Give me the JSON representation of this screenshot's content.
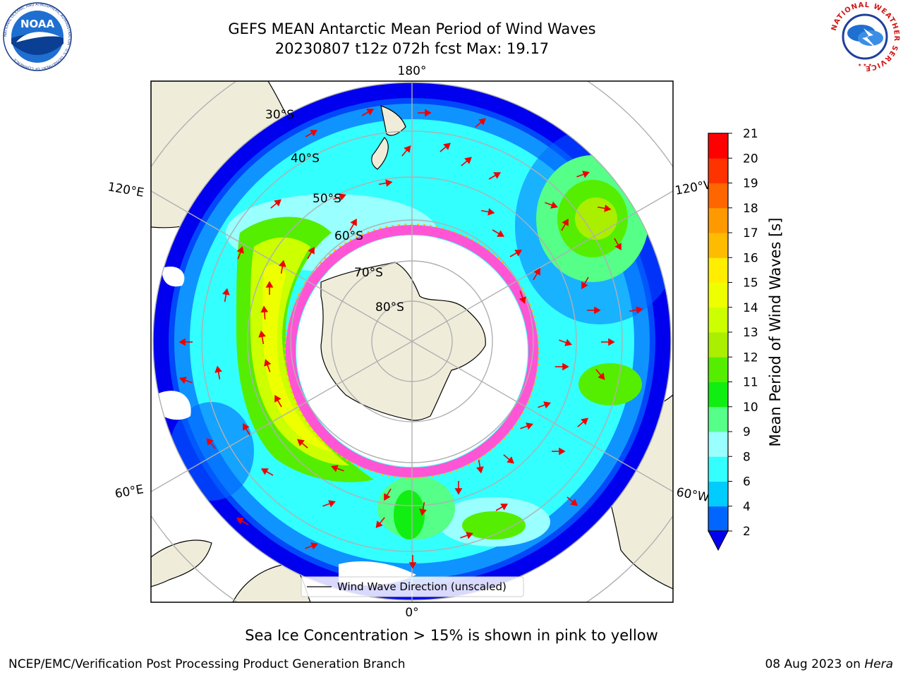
{
  "title": {
    "line1": "GEFS MEAN Antarctic Mean Period of Wind Waves",
    "line2": "20230807 t12z 072h fcst   Max: 19.17"
  },
  "logos": {
    "left_text": "NOAA",
    "left_ring": "NATIONAL OCEANIC AND ATMOSPHERIC ADMINISTRATION · U.S. DEPARTMENT OF COMMERCE",
    "right_ring": "NATIONAL WEATHER SERVICE"
  },
  "map": {
    "projection": "South Polar Stereographic",
    "lon_labels": {
      "top": "180°",
      "bottom": "0°",
      "upper_left": "120°E",
      "lower_left": "60°E",
      "upper_right": "120°W",
      "lower_right": "60°W"
    },
    "lat_labels": [
      "30°S",
      "40°S",
      "50°S",
      "60°S",
      "70°S",
      "80°S"
    ],
    "legend": "Wind Wave Direction (unscaled)",
    "colors": {
      "land": "#efedda",
      "ice": "#ff55d5",
      "arrow": "#ee0000",
      "grid": "#b0b0b0"
    }
  },
  "colorbar": {
    "label": "Mean Period of Wind Waves [s]",
    "ticks": [
      "2",
      "4",
      "6",
      "8",
      "9",
      "10",
      "11",
      "12",
      "13",
      "14",
      "15",
      "16",
      "17",
      "18",
      "19",
      "20",
      "21"
    ],
    "colors": [
      "#0066ff",
      "#00ccff",
      "#33ffff",
      "#99ffff",
      "#55ff88",
      "#11ee11",
      "#55ee00",
      "#aaee00",
      "#ccff00",
      "#eeff00",
      "#ffee00",
      "#ffbb00",
      "#ff9900",
      "#ff6600",
      "#ff3300",
      "#ff0000"
    ],
    "under_color": "#0000ee"
  },
  "notes": {
    "sea_ice": "Sea Ice Concentration > 15% is shown in pink to yellow"
  },
  "footer": {
    "left": "NCEP/EMC/Verification Post Processing Product Generation Branch",
    "date": "08 Aug 2023 on ",
    "machine": "Hera"
  }
}
